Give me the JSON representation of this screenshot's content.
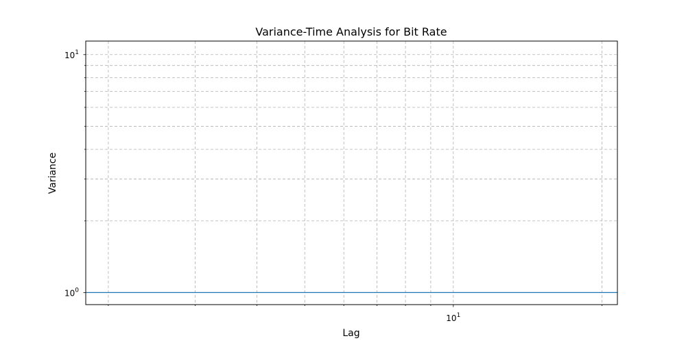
{
  "chart_data": {
    "type": "line",
    "title": "Variance-Time Analysis for Bit Rate",
    "xlabel": "Lag",
    "ylabel": "Variance",
    "xscale": "log",
    "yscale": "log",
    "xlim": [
      1.8,
      21.5
    ],
    "ylim": [
      0.89,
      11.4
    ],
    "x_major_ticks": [
      {
        "base": "10",
        "exp": "1",
        "value": 10
      }
    ],
    "y_major_ticks": [
      {
        "base": "10",
        "exp": "0",
        "value": 1
      },
      {
        "base": "10",
        "exp": "1",
        "value": 10
      }
    ],
    "x_minor_ticks": [
      2,
      3,
      4,
      5,
      6,
      7,
      8,
      9,
      20
    ],
    "y_minor_ticks": [
      2,
      3,
      4,
      5,
      6,
      7,
      8,
      9
    ],
    "grid": true,
    "series": [
      {
        "values": [
          1.0,
          1.0
        ]
      }
    ],
    "x": [
      1.8,
      21.5
    ]
  },
  "colors": {
    "grid": "#b0b0b0",
    "axes": "#000000",
    "series": "#1f77b4"
  }
}
